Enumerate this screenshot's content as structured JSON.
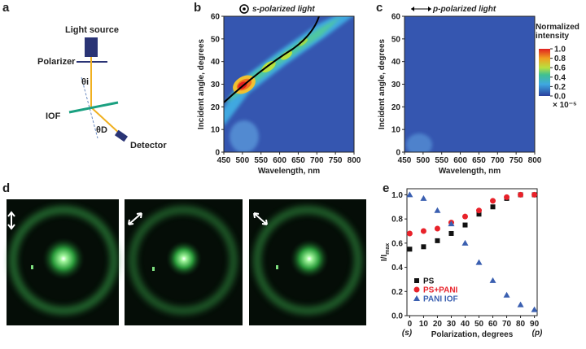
{
  "panels": [
    "a",
    "b",
    "c",
    "d",
    "e"
  ],
  "schematic": {
    "source": "Light source",
    "polarizer": "Polarizer",
    "theta_i": "θi",
    "sample": "IOF",
    "theta_d": "θD",
    "detector": "Detector"
  },
  "chart_data": [
    {
      "type": "contour",
      "title": "s-polarized light",
      "x_label": "Wavelength, nm",
      "y_label": "Incident angle, degrees",
      "xlim": [
        450,
        800
      ],
      "xticks": [
        450,
        500,
        550,
        600,
        650,
        700,
        750,
        800
      ],
      "ylim": [
        0,
        60
      ],
      "yticks": [
        0,
        10,
        20,
        30,
        40,
        50,
        60
      ],
      "color": "#3556b0"
    },
    {
      "type": "contour",
      "title": "p-polarized light",
      "x_label": "Wavelength, nm",
      "y_label": "Incident angle, degrees",
      "xlim": [
        450,
        800
      ],
      "xticks": [
        450,
        500,
        550,
        600,
        650,
        700,
        750,
        800
      ],
      "ylim": [
        0,
        60
      ],
      "yticks": [
        0,
        10,
        20,
        30,
        40,
        50,
        60
      ],
      "color": "#3556b0",
      "colorbar": {
        "title": "Normalized intensity",
        "multiplier": "× 10⁻⁵",
        "lim": [
          0,
          1
        ],
        "ticks": [
          {
            "value": 0,
            "label": "0.0"
          },
          {
            "value": 0.2,
            "label": "0.2"
          },
          {
            "value": 0.4,
            "label": "0.4"
          },
          {
            "value": 0.6,
            "label": "0.6"
          },
          {
            "value": 0.8,
            "label": "0.8"
          },
          {
            "value": 1,
            "label": "1.0"
          }
        ]
      }
    },
    {
      "type": "scatter",
      "x_label": "Polarization, degrees",
      "y_label": "I/I",
      "y_label_sub": "max",
      "annotations": [
        "(s)",
        "(p)"
      ],
      "x": [
        0,
        10,
        20,
        30,
        40,
        50,
        60,
        70,
        80,
        90
      ],
      "xlim": [
        -2,
        92
      ],
      "xticks": [
        0,
        10,
        20,
        30,
        40,
        50,
        60,
        70,
        80,
        90
      ],
      "ylim": [
        0,
        1.05
      ],
      "yticks": [
        {
          "value": 0,
          "label": "0.0"
        },
        {
          "value": 0.2,
          "label": "0.2"
        },
        {
          "value": 0.4,
          "label": "0.4"
        },
        {
          "value": 0.6,
          "label": "0.6"
        },
        {
          "value": 0.8,
          "label": "0.8"
        },
        {
          "value": 1,
          "label": "1.0"
        }
      ],
      "series": [
        {
          "name": "PS",
          "color": "#111111",
          "marker": "square",
          "values": [
            0.55,
            0.57,
            0.62,
            0.68,
            0.75,
            0.84,
            0.9,
            0.97,
            1.0,
            1.0
          ]
        },
        {
          "name": "PS+PANI",
          "color": "#e8222a",
          "marker": "circle",
          "values": [
            0.68,
            0.7,
            0.72,
            0.77,
            0.82,
            0.87,
            0.95,
            0.98,
            1.0,
            1.0
          ]
        },
        {
          "name": "PANI IOF",
          "color": "#3a5fb0",
          "marker": "triangle",
          "values": [
            1.0,
            0.97,
            0.87,
            0.76,
            0.6,
            0.44,
            0.29,
            0.17,
            0.09,
            0.05
          ]
        }
      ]
    }
  ]
}
